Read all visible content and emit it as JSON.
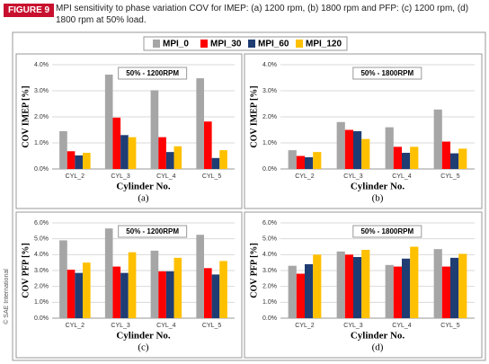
{
  "figure_label": "FIGURE 9",
  "caption": "MPI sensitivity to phase variation COV for IMEP: (a) 1200 rpm, (b) 1800 rpm and PFP: (c) 1200 rpm, (d) 1800 rpm at 50% load.",
  "copyright": "© SAE International",
  "chart_data": [
    {
      "type": "bar",
      "annotation": "50% - 1200RPM",
      "panel_label": "(a)",
      "ylabel": "COV IMEP [%]",
      "xlabel": "Cylinder No.",
      "categories": [
        "CYL_2",
        "CYL_3",
        "CYL_4",
        "CYL_5"
      ],
      "series": [
        {
          "name": "MPI_0",
          "color": "#a6a6a6",
          "values": [
            1.45,
            3.62,
            3.02,
            3.48
          ]
        },
        {
          "name": "MPI_30",
          "color": "#ff0000",
          "values": [
            0.68,
            1.97,
            1.22,
            1.82
          ]
        },
        {
          "name": "MPI_60",
          "color": "#1f3d73",
          "values": [
            0.52,
            1.3,
            0.65,
            0.42
          ]
        },
        {
          "name": "MPI_120",
          "color": "#ffc000",
          "values": [
            0.62,
            1.22,
            0.87,
            0.72
          ]
        }
      ],
      "ylim": [
        0,
        4
      ],
      "yticks": [
        {
          "value": 0,
          "label": "0.0%"
        },
        {
          "value": 1,
          "label": "1.0%"
        },
        {
          "value": 2,
          "label": "2.0%"
        },
        {
          "value": 3,
          "label": "3.0%"
        },
        {
          "value": 4,
          "label": "4.0%"
        }
      ],
      "grid": true
    },
    {
      "type": "bar",
      "annotation": "50% - 1800RPM",
      "panel_label": "(b)",
      "ylabel": "COV IMEP [%]",
      "xlabel": "Cylinder No.",
      "categories": [
        "CYL_2",
        "CYL_3",
        "CYL_4",
        "CYL_5"
      ],
      "series": [
        {
          "color": "#a6a6a6",
          "values": [
            0.72,
            1.8,
            1.6,
            2.28
          ]
        },
        {
          "color": "#ff0000",
          "values": [
            0.5,
            1.5,
            0.85,
            1.05
          ]
        },
        {
          "color": "#1f3d73",
          "values": [
            0.45,
            1.45,
            0.62,
            0.6
          ]
        },
        {
          "color": "#ffc000",
          "values": [
            0.65,
            1.15,
            0.85,
            0.78
          ]
        }
      ],
      "ylim": [
        0,
        4
      ],
      "yticks": [
        {
          "value": 0,
          "label": "0.0%"
        },
        {
          "value": 1,
          "label": "1.0%"
        },
        {
          "value": 2,
          "label": "2.0%"
        },
        {
          "value": 3,
          "label": "3.0%"
        },
        {
          "value": 4,
          "label": "4.0%"
        }
      ],
      "grid": true
    },
    {
      "type": "bar",
      "annotation": "50% - 1200RPM",
      "panel_label": "(c)",
      "ylabel": "COV PFP [%]",
      "xlabel": "Cylinder No.",
      "categories": [
        "CYL_2",
        "CYL_3",
        "CYL_4",
        "CYL_5"
      ],
      "series": [
        {
          "color": "#a6a6a6",
          "values": [
            4.9,
            5.65,
            4.25,
            5.25
          ]
        },
        {
          "color": "#ff0000",
          "values": [
            3.05,
            3.25,
            2.95,
            3.15
          ]
        },
        {
          "color": "#1f3d73",
          "values": [
            2.85,
            2.85,
            2.95,
            2.75
          ]
        },
        {
          "color": "#ffc000",
          "values": [
            3.5,
            4.15,
            3.8,
            3.6
          ]
        }
      ],
      "ylim": [
        0,
        6
      ],
      "yticks": [
        {
          "value": 0,
          "label": "0.0%"
        },
        {
          "value": 1,
          "label": "1.0%"
        },
        {
          "value": 2,
          "label": "2.0%"
        },
        {
          "value": 3,
          "label": "3.0%"
        },
        {
          "value": 4,
          "label": "4.0%"
        },
        {
          "value": 5,
          "label": "5.0%"
        },
        {
          "value": 6,
          "label": "6.0%"
        }
      ],
      "grid": true
    },
    {
      "type": "bar",
      "annotation": "50% - 1800RPM",
      "panel_label": "(d)",
      "ylabel": "COV PFP [%]",
      "xlabel": "Cylinder No.",
      "categories": [
        "CYL_2",
        "CYL_3",
        "CYL_4",
        "CYL_5"
      ],
      "series": [
        {
          "color": "#a6a6a6",
          "values": [
            3.3,
            4.2,
            3.35,
            4.35
          ]
        },
        {
          "color": "#ff0000",
          "values": [
            2.8,
            4.0,
            3.25,
            3.25
          ]
        },
        {
          "color": "#1f3d73",
          "values": [
            3.4,
            3.85,
            3.75,
            3.8
          ]
        },
        {
          "color": "#ffc000",
          "values": [
            4.0,
            4.3,
            4.5,
            4.05
          ]
        }
      ],
      "ylim": [
        0,
        6
      ],
      "yticks": [
        {
          "value": 0,
          "label": "0.0%"
        },
        {
          "value": 1,
          "label": "1.0%"
        },
        {
          "value": 2,
          "label": "2.0%"
        },
        {
          "value": 3,
          "label": "3.0%"
        },
        {
          "value": 4,
          "label": "4.0%"
        },
        {
          "value": 5,
          "label": "5.0%"
        },
        {
          "value": 6,
          "label": "6.0%"
        }
      ],
      "grid": true
    }
  ]
}
